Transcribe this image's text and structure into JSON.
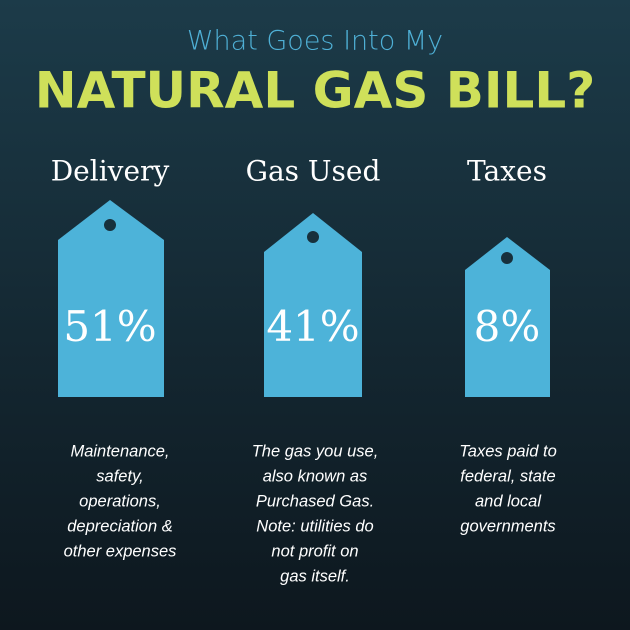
{
  "header": {
    "kicker": "What Goes Into My",
    "title": "NATURAL GAS BILL?"
  },
  "items": [
    {
      "label": "Delivery",
      "percent": "51%",
      "description": [
        "Maintenance,",
        "safety,",
        "operations,",
        "depreciation &",
        "other expenses"
      ]
    },
    {
      "label": "Gas Used",
      "percent": "41%",
      "description": [
        "The gas you use,",
        "also known as",
        "Purchased Gas.",
        "Note: utilities do",
        "not profit on",
        "gas itself."
      ]
    },
    {
      "label": "Taxes",
      "percent": "8%",
      "description": [
        "Taxes paid to",
        "federal, state",
        "and local",
        "governments"
      ]
    }
  ]
}
